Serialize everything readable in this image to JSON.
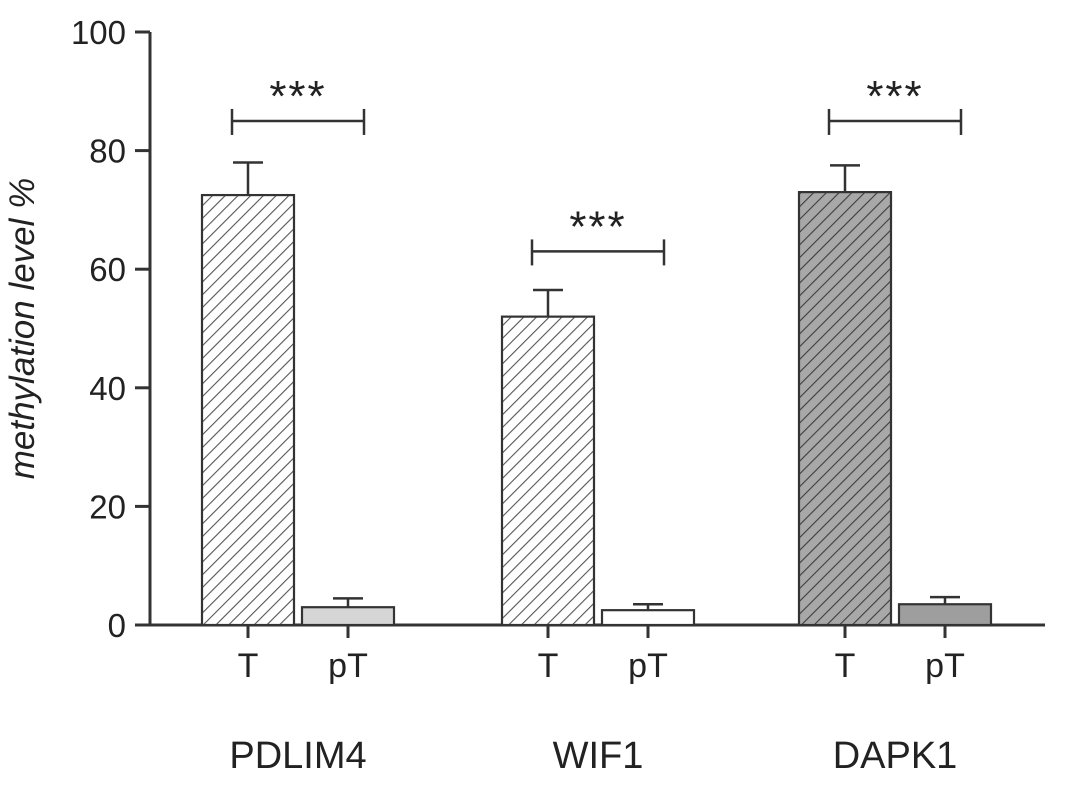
{
  "figure": {
    "background": "#ffffff",
    "axis_color": "#333333",
    "bar_stroke_color": "#333333",
    "error_bar_color": "#333333"
  },
  "chart_data": {
    "type": "bar",
    "title": "",
    "xlabel": "",
    "ylabel": "methylation level %",
    "ylim": [
      0,
      100
    ],
    "yticks": [
      0,
      20,
      40,
      60,
      80,
      100
    ],
    "grid": false,
    "legend": null,
    "patterns": {
      "hatch-light": {
        "background": "#ffffff",
        "line": "#555555"
      },
      "hatch-dark": {
        "background": "#a8a8a8",
        "line": "#3d3d3d"
      }
    },
    "groups": [
      {
        "category": "PDLIM4",
        "bars": [
          {
            "label": "T",
            "value": 72.5,
            "error": 5.5,
            "fill": "hatch-light"
          },
          {
            "label": "pT",
            "value": 3.0,
            "error": 1.5,
            "fill": "#d6d6d6"
          }
        ],
        "significance": {
          "label": "***",
          "level": 85
        }
      },
      {
        "category": "WIF1",
        "bars": [
          {
            "label": "T",
            "value": 52.0,
            "error": 4.5,
            "fill": "hatch-light"
          },
          {
            "label": "pT",
            "value": 2.5,
            "error": 1.0,
            "fill": "#ffffff"
          }
        ],
        "significance": {
          "label": "***",
          "level": 63
        }
      },
      {
        "category": "DAPK1",
        "bars": [
          {
            "label": "T",
            "value": 73.0,
            "error": 4.5,
            "fill": "hatch-dark"
          },
          {
            "label": "pT",
            "value": 3.5,
            "error": 1.2,
            "fill": "#9e9e9e"
          }
        ],
        "significance": {
          "label": "***",
          "level": 85
        }
      }
    ]
  }
}
